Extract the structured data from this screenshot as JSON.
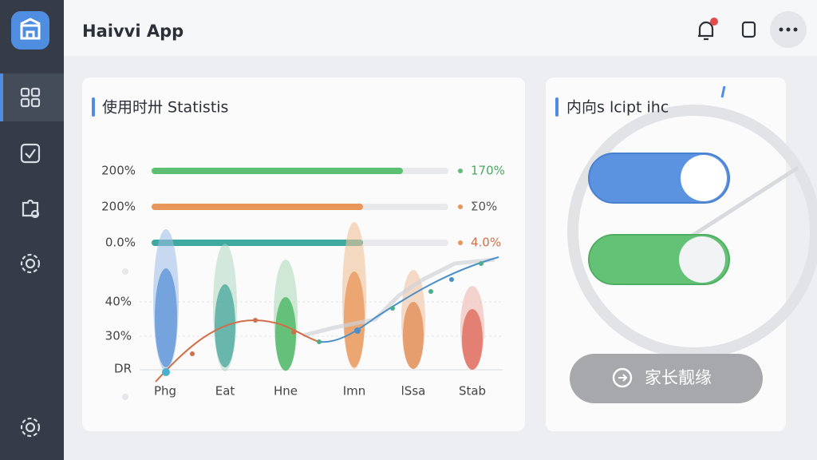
{
  "header": {
    "title": "Haivvi App"
  },
  "stats_card": {
    "title": "使用时卅 Statistis",
    "progress": [
      {
        "left": "200%",
        "right": "170%"
      },
      {
        "left": "200%",
        "right": "Σ0%"
      },
      {
        "left": "0.0%",
        "right": "4.0%"
      }
    ],
    "axis_labels": [
      "40%",
      "30%",
      "DR"
    ],
    "categories": [
      "Phg",
      "Eat",
      "Hne",
      "Imn",
      "lSsa",
      "Stab"
    ]
  },
  "control_card": {
    "title": "内向s lcipt ihc",
    "button": "家长靓缘"
  }
}
